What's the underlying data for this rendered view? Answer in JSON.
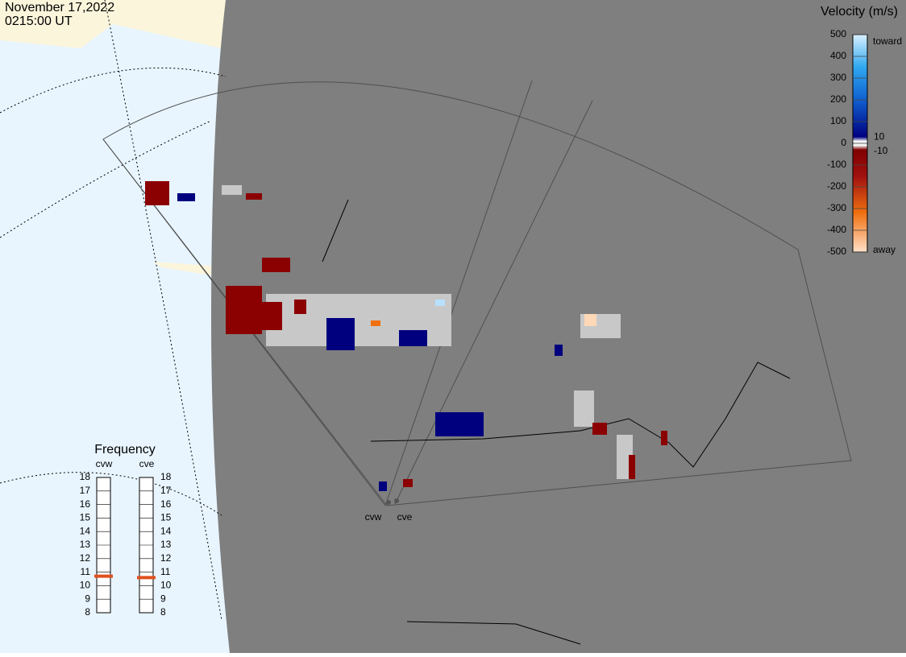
{
  "header": {
    "date": "November 17,2022",
    "time": "0215:00 UT"
  },
  "velocity_scale": {
    "title": "Velocity (m/s)",
    "lim": [
      500,
      -500
    ],
    "ticks": [
      500,
      400,
      300,
      200,
      100,
      0,
      -100,
      -200,
      -300,
      -400,
      -500
    ],
    "inner_ticks": [
      10,
      -10
    ],
    "toward": "toward",
    "away": "away"
  },
  "frequency": {
    "title": "Frequency",
    "lim": [
      8,
      18
    ],
    "ticks": [
      8,
      9,
      10,
      11,
      12,
      13,
      14,
      15,
      16,
      17,
      18
    ],
    "radars": [
      {
        "name": "cvw",
        "value": 10.7,
        "color": "#e0501e"
      },
      {
        "name": "cve",
        "value": 10.6,
        "color": "#e0501e"
      }
    ]
  },
  "map_labels": [
    "cvw",
    "cve"
  ]
}
